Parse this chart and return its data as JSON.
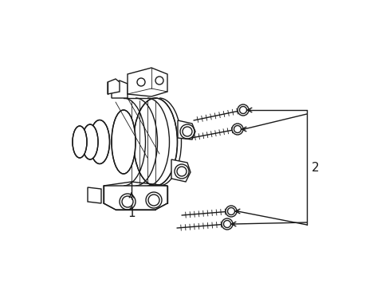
{
  "bg_color": "#ffffff",
  "line_color": "#1a1a1a",
  "line_width": 1.0,
  "thin_lw": 0.6,
  "fig_width": 4.89,
  "fig_height": 3.6,
  "dpi": 100,
  "label_1": "1",
  "label_2": "2"
}
